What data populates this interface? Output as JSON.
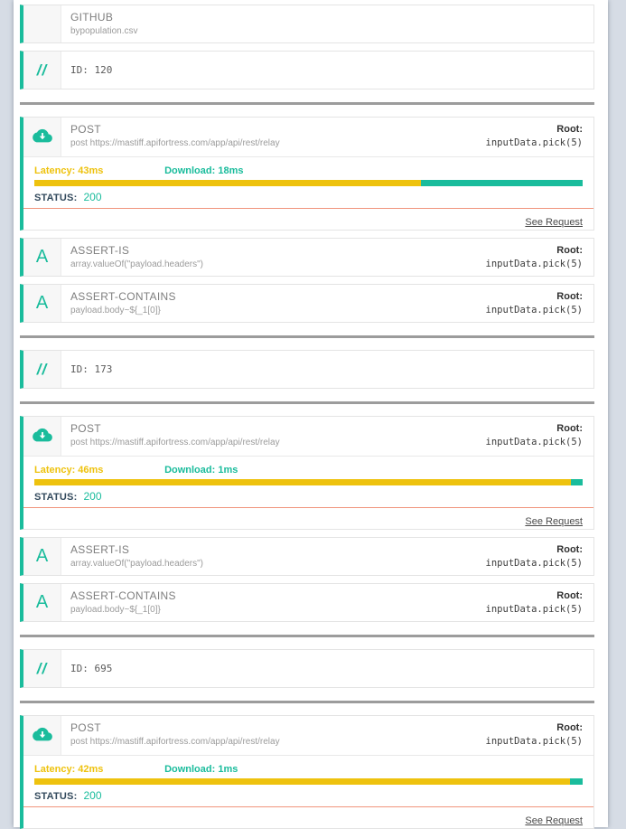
{
  "page": {
    "background": "#d6dce5",
    "accent_teal": "#1abc9c",
    "accent_yellow": "#eec20e",
    "divider_color": "#9c9c9c",
    "separator_red": "#f0947c"
  },
  "source": {
    "title": "GITHUB",
    "subtitle": "bypopulation.csv"
  },
  "shared": {
    "comment_icon": "//",
    "assert_icon": "A",
    "root_label": "Root:",
    "root_value": "inputData.pick(5)",
    "post": {
      "title": "POST",
      "subtitle": "post https://mastiff.apifortress.com/app/api/rest/relay"
    },
    "assert_is": {
      "title": "ASSERT-IS",
      "subtitle": "array.valueOf(\"payload.headers\")"
    },
    "assert_contains": {
      "title": "ASSERT-CONTAINS",
      "subtitle": "payload.body~${_1[0]}"
    },
    "status_label": "STATUS:",
    "status_value": "200",
    "see_request_label": "See Request"
  },
  "iterations": [
    {
      "id_text": "ID: 120",
      "latency_label": "Latency: 43ms",
      "download_label": "Download: 18ms",
      "latency_ms": 43,
      "download_ms": 18,
      "latency_pct": 70.5
    },
    {
      "id_text": "ID: 173",
      "latency_label": "Latency: 46ms",
      "download_label": "Download: 1ms",
      "latency_ms": 46,
      "download_ms": 1,
      "latency_pct": 97.9
    },
    {
      "id_text": "ID: 695",
      "latency_label": "Latency: 42ms",
      "download_label": "Download: 1ms",
      "latency_ms": 42,
      "download_ms": 1,
      "latency_pct": 97.7
    }
  ]
}
